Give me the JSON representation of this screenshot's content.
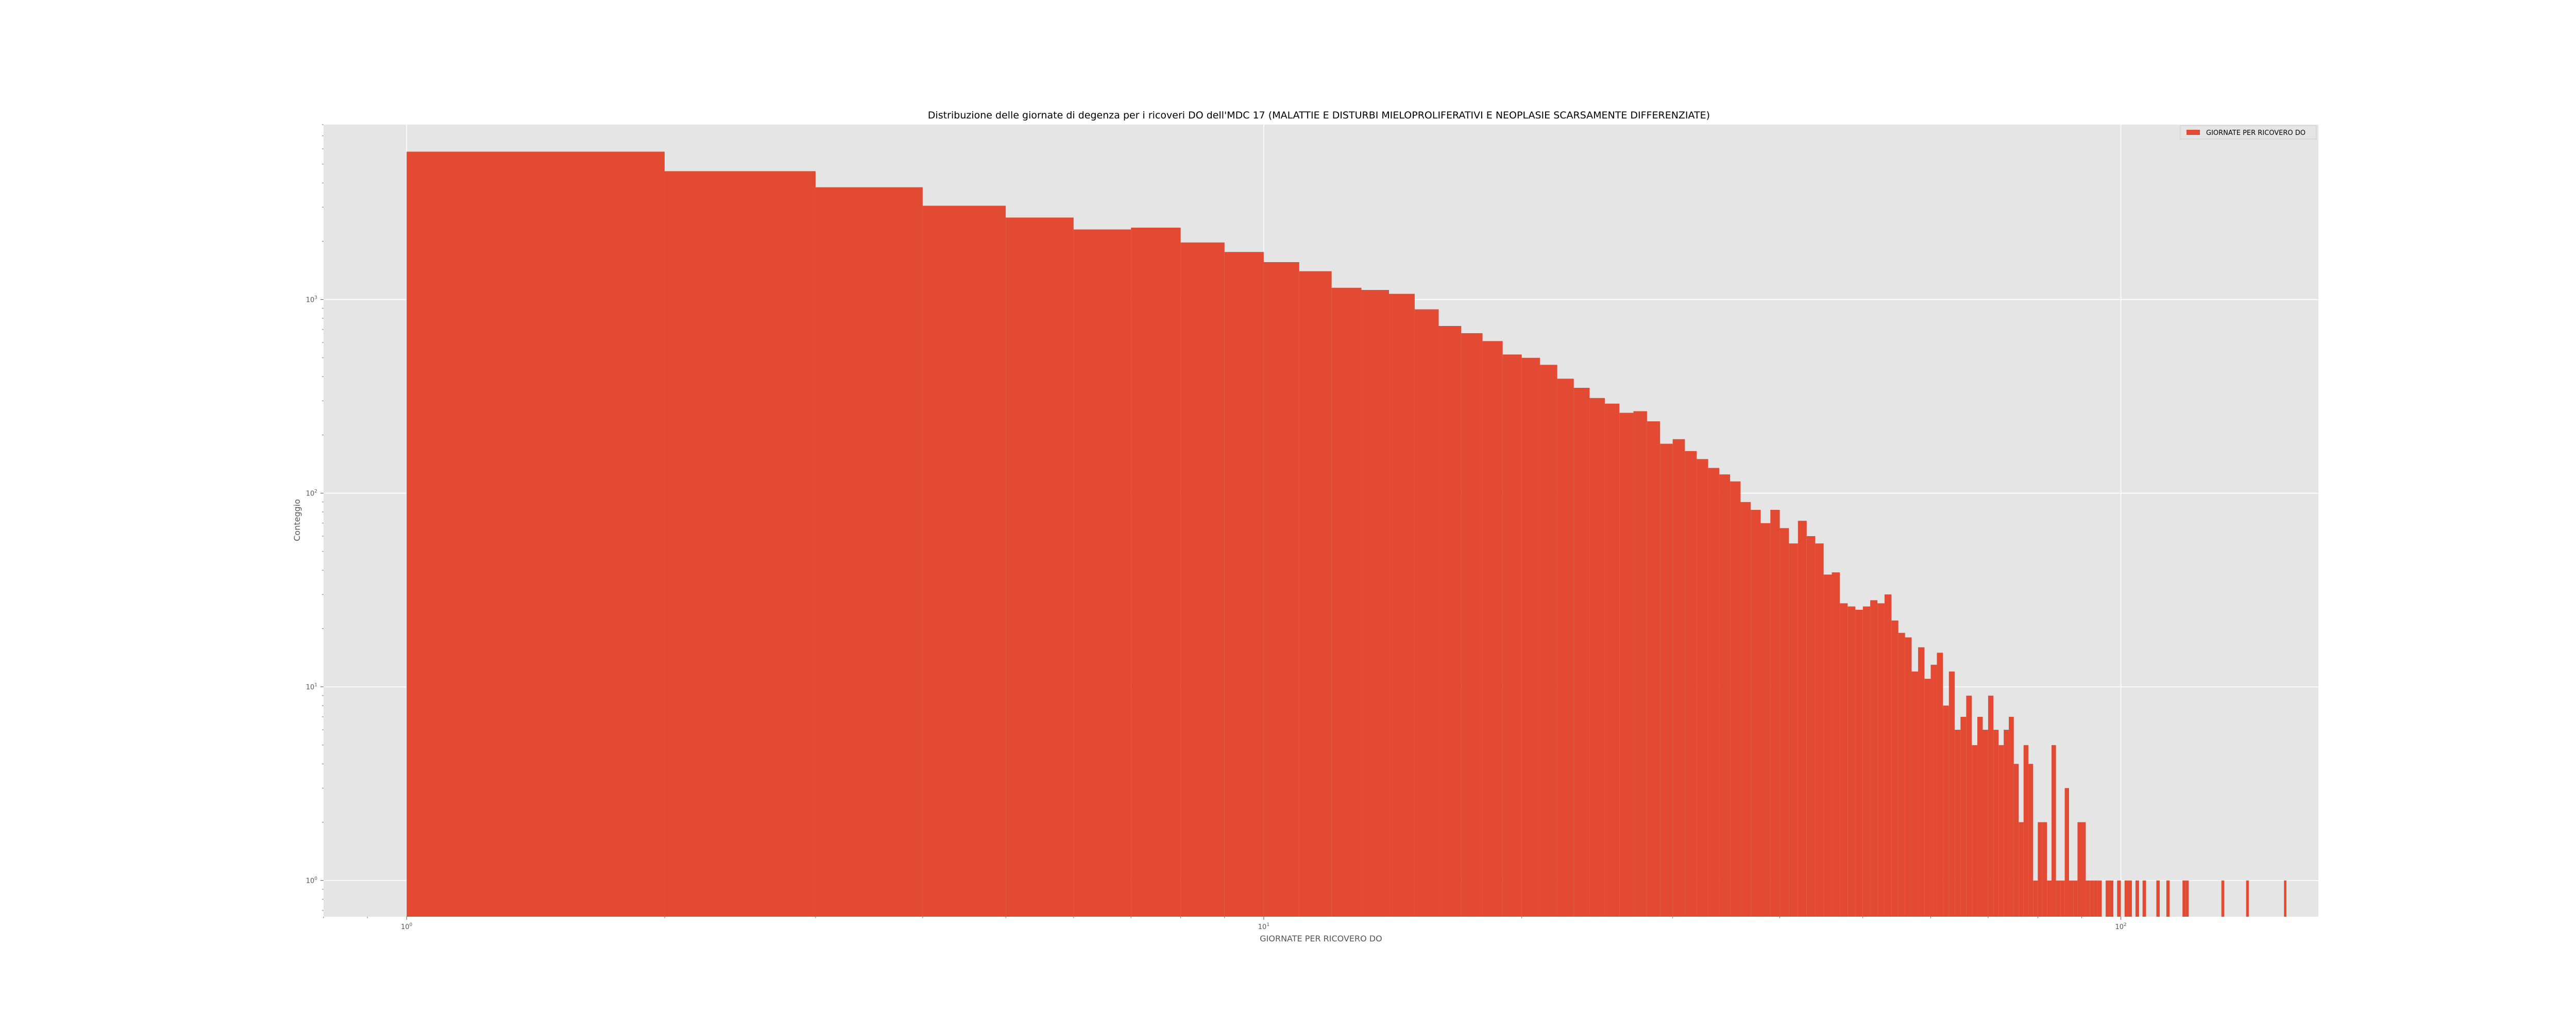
{
  "chart_data": {
    "type": "bar",
    "title": "Distribuzione delle giornate di degenza per i ricoveri DO dell'MDC 17 (MALATTIE E DISTURBI MIELOPROLIFERATIVI E NEOPLASIE SCARSAMENTE DIFFERENZIATE)",
    "xlabel": "GIORNATE PER RICOVERO DO",
    "ylabel": "Conteggio",
    "x_scale": "log",
    "y_scale": "log",
    "xlim": [
      0.8,
      170
    ],
    "ylim": [
      0.65,
      8000
    ],
    "grid": true,
    "legend": {
      "position": "top-right",
      "entries": [
        "GIORNATE PER RICOVERO DO"
      ]
    },
    "x_ticks": [
      {
        "value": 1,
        "base": "10",
        "exp": "0"
      },
      {
        "value": 10,
        "base": "10",
        "exp": "1"
      },
      {
        "value": 100,
        "base": "10",
        "exp": "2"
      }
    ],
    "y_ticks": [
      {
        "value": 1,
        "base": "10",
        "exp": "0"
      },
      {
        "value": 10,
        "base": "10",
        "exp": "1"
      },
      {
        "value": 100,
        "base": "10",
        "exp": "2"
      },
      {
        "value": 1000,
        "base": "10",
        "exp": "3"
      }
    ],
    "series": [
      {
        "name": "GIORNATE PER RICOVERO DO",
        "color": "#E24A33",
        "bins": [
          [
            1,
            2,
            5800
          ],
          [
            2,
            3,
            4600
          ],
          [
            3,
            4,
            3800
          ],
          [
            4,
            5,
            3050
          ],
          [
            5,
            6,
            2650
          ],
          [
            6,
            7,
            2300
          ],
          [
            7,
            8,
            2350
          ],
          [
            8,
            9,
            1970
          ],
          [
            9,
            10,
            1760
          ],
          [
            10,
            11,
            1560
          ],
          [
            11,
            12,
            1400
          ],
          [
            12,
            13,
            1150
          ],
          [
            13,
            14,
            1120
          ],
          [
            14,
            15,
            1070
          ],
          [
            15,
            16,
            890
          ],
          [
            16,
            17,
            730
          ],
          [
            17,
            18,
            670
          ],
          [
            18,
            19,
            610
          ],
          [
            19,
            20,
            520
          ],
          [
            20,
            21,
            500
          ],
          [
            21,
            22,
            460
          ],
          [
            22,
            23,
            390
          ],
          [
            23,
            24,
            350
          ],
          [
            24,
            25,
            310
          ],
          [
            25,
            26,
            290
          ],
          [
            26,
            27,
            260
          ],
          [
            27,
            28,
            265
          ],
          [
            28,
            29,
            235
          ],
          [
            29,
            30,
            180
          ],
          [
            30,
            31,
            190
          ],
          [
            31,
            32,
            165
          ],
          [
            32,
            33,
            150
          ],
          [
            33,
            34,
            135
          ],
          [
            34,
            35,
            125
          ],
          [
            35,
            36,
            115
          ],
          [
            36,
            37,
            90
          ],
          [
            37,
            38,
            82
          ],
          [
            38,
            39,
            70
          ],
          [
            39,
            40,
            82
          ],
          [
            40,
            41,
            66
          ],
          [
            41,
            42,
            55
          ],
          [
            42,
            43,
            72
          ],
          [
            43,
            44,
            60
          ],
          [
            44,
            45,
            55
          ],
          [
            45,
            46,
            38
          ],
          [
            46,
            47,
            39
          ],
          [
            47,
            48,
            27
          ],
          [
            48,
            49,
            26
          ],
          [
            49,
            50,
            25
          ],
          [
            50,
            51,
            26
          ],
          [
            51,
            52,
            28
          ],
          [
            52,
            53,
            27
          ],
          [
            53,
            54,
            30
          ],
          [
            54,
            55,
            22
          ],
          [
            55,
            56,
            19
          ],
          [
            56,
            57,
            18
          ],
          [
            57,
            58,
            12
          ],
          [
            58,
            59,
            16
          ],
          [
            59,
            60,
            11
          ],
          [
            60,
            61,
            13
          ],
          [
            61,
            62,
            15
          ],
          [
            62,
            63,
            8
          ],
          [
            63,
            64,
            12
          ],
          [
            64,
            65,
            6
          ],
          [
            65,
            66,
            7
          ],
          [
            66,
            67,
            9
          ],
          [
            67,
            68,
            5
          ],
          [
            68,
            69,
            7
          ],
          [
            69,
            70,
            6
          ],
          [
            70,
            71,
            9
          ],
          [
            71,
            72,
            6
          ],
          [
            72,
            73,
            5
          ],
          [
            73,
            74,
            6
          ],
          [
            74,
            75,
            7
          ],
          [
            75,
            76,
            4
          ],
          [
            76,
            77,
            2
          ],
          [
            77,
            78,
            5
          ],
          [
            78,
            79,
            4
          ],
          [
            79,
            80,
            1
          ],
          [
            80,
            81,
            2
          ],
          [
            81,
            82,
            2
          ],
          [
            82,
            83,
            1
          ],
          [
            83,
            84,
            5
          ],
          [
            84,
            85,
            1
          ],
          [
            85,
            86,
            1
          ],
          [
            86,
            87,
            3
          ],
          [
            87,
            88,
            1
          ],
          [
            88,
            89,
            1
          ],
          [
            89,
            90,
            2
          ],
          [
            90,
            91,
            2
          ],
          [
            91,
            92,
            1
          ],
          [
            92,
            93,
            1
          ],
          [
            93,
            94,
            1
          ],
          [
            94,
            95,
            1
          ],
          [
            96,
            97,
            1
          ],
          [
            97,
            98,
            1
          ],
          [
            99,
            100,
            1
          ],
          [
            101,
            102,
            1
          ],
          [
            102,
            103,
            1
          ],
          [
            104,
            105,
            1
          ],
          [
            106,
            107,
            1
          ],
          [
            110,
            111,
            1
          ],
          [
            113,
            114,
            1
          ],
          [
            118,
            119,
            1
          ],
          [
            119,
            120,
            1
          ],
          [
            131,
            132,
            1
          ],
          [
            140,
            141,
            1
          ],
          [
            155,
            156,
            1
          ]
        ]
      }
    ]
  }
}
